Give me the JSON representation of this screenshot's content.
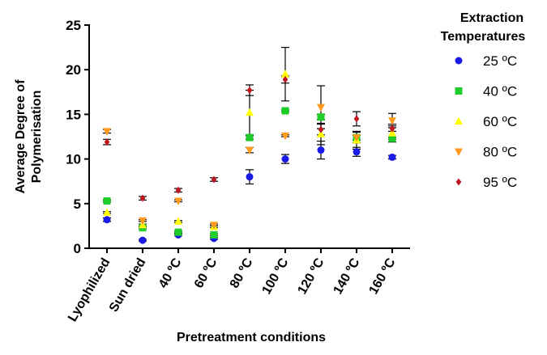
{
  "chart_data": {
    "type": "scatter",
    "title": "",
    "xlabel": "Pretreatment conditions",
    "ylabel": [
      "Average Degree of",
      "Polymerisation"
    ],
    "ylim": [
      0,
      25
    ],
    "yticks": [
      0,
      5,
      10,
      15,
      20,
      25
    ],
    "categories": [
      "Lyophilized",
      "Sun dried",
      "40 ºC",
      "60 ºC",
      "80 ºC",
      "100 ºC",
      "120 ºC",
      "140 ºC",
      "160 ºC"
    ],
    "legend": {
      "title": [
        "Extraction",
        "Temperatures"
      ],
      "position": "right"
    },
    "series": [
      {
        "name": "25 ºC",
        "color": "#1a1ae6",
        "marker": "circle",
        "values": [
          3.2,
          0.9,
          1.5,
          1.1,
          8.0,
          10.0,
          11.0,
          10.8,
          10.2
        ],
        "errors": [
          0.2,
          0.1,
          0.1,
          0.1,
          0.8,
          0.5,
          1.0,
          0.5,
          0.2
        ]
      },
      {
        "name": "40 ºC",
        "color": "#1ecc2a",
        "marker": "square",
        "values": [
          5.3,
          2.3,
          1.8,
          1.5,
          12.4,
          15.4,
          14.7,
          12.4,
          12.3
        ],
        "errors": [
          0.1,
          0.1,
          0.1,
          0.1,
          0.2,
          0.1,
          0.3,
          0.3,
          0.1
        ]
      },
      {
        "name": "60 ºC",
        "color": "#ffff00",
        "marker": "triangle-up",
        "values": [
          4.0,
          2.6,
          3.0,
          2.4,
          15.2,
          19.5,
          12.8,
          12.1,
          12.9
        ],
        "errors": [
          0.1,
          0.1,
          0.1,
          0.1,
          2.5,
          3.0,
          1.2,
          1.0,
          1.0
        ]
      },
      {
        "name": "80 ºC",
        "color": "#ff9a1f",
        "marker": "triangle-down",
        "values": [
          13.1,
          3.1,
          5.3,
          2.6,
          11.0,
          12.6,
          15.8,
          12.4,
          14.3
        ],
        "errors": [
          0.2,
          0.1,
          0.1,
          0.1,
          0.3,
          0.1,
          2.4,
          0.6,
          0.8
        ]
      },
      {
        "name": "95 ºC",
        "color": "#c0161e",
        "marker": "diamond",
        "values": [
          11.9,
          5.6,
          6.5,
          7.7,
          17.7,
          18.9,
          13.3,
          14.5,
          13.4
        ],
        "errors": [
          0.3,
          0.2,
          0.2,
          0.2,
          0.6,
          0.4,
          0.6,
          0.8,
          0.3
        ]
      }
    ]
  }
}
